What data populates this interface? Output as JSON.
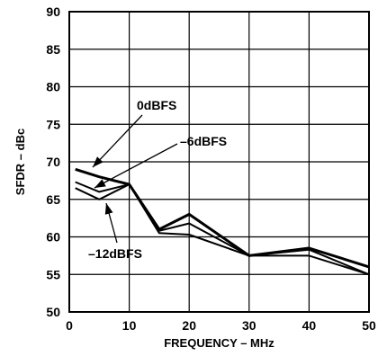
{
  "chart_data": {
    "type": "line",
    "title": "",
    "xlabel": "FREQUENCY – MHz",
    "ylabel": "SFDR – dBc",
    "xlim": [
      0,
      50
    ],
    "ylim": [
      50,
      90
    ],
    "xticks": [
      0,
      10,
      20,
      30,
      40,
      50
    ],
    "yticks": [
      50,
      55,
      60,
      65,
      70,
      75,
      80,
      85,
      90
    ],
    "grid": true,
    "legend": "none",
    "line_color": "#000000",
    "series": [
      {
        "name": "0dBFS",
        "x": [
          1,
          5,
          10,
          15,
          20,
          30,
          40,
          50
        ],
        "y": [
          69.0,
          68.0,
          67.0,
          61.0,
          63.0,
          57.5,
          58.5,
          56.0
        ]
      },
      {
        "name": "–6dBFS",
        "x": [
          1,
          5,
          10,
          15,
          20,
          30,
          40,
          50
        ],
        "y": [
          67.3,
          66.0,
          67.0,
          60.8,
          61.8,
          57.5,
          58.3,
          55.0
        ]
      },
      {
        "name": "–12dBFS",
        "x": [
          1,
          5,
          10,
          15,
          20,
          30,
          40,
          50
        ],
        "y": [
          66.5,
          65.0,
          67.0,
          60.5,
          60.3,
          57.5,
          57.5,
          55.0
        ]
      }
    ]
  }
}
